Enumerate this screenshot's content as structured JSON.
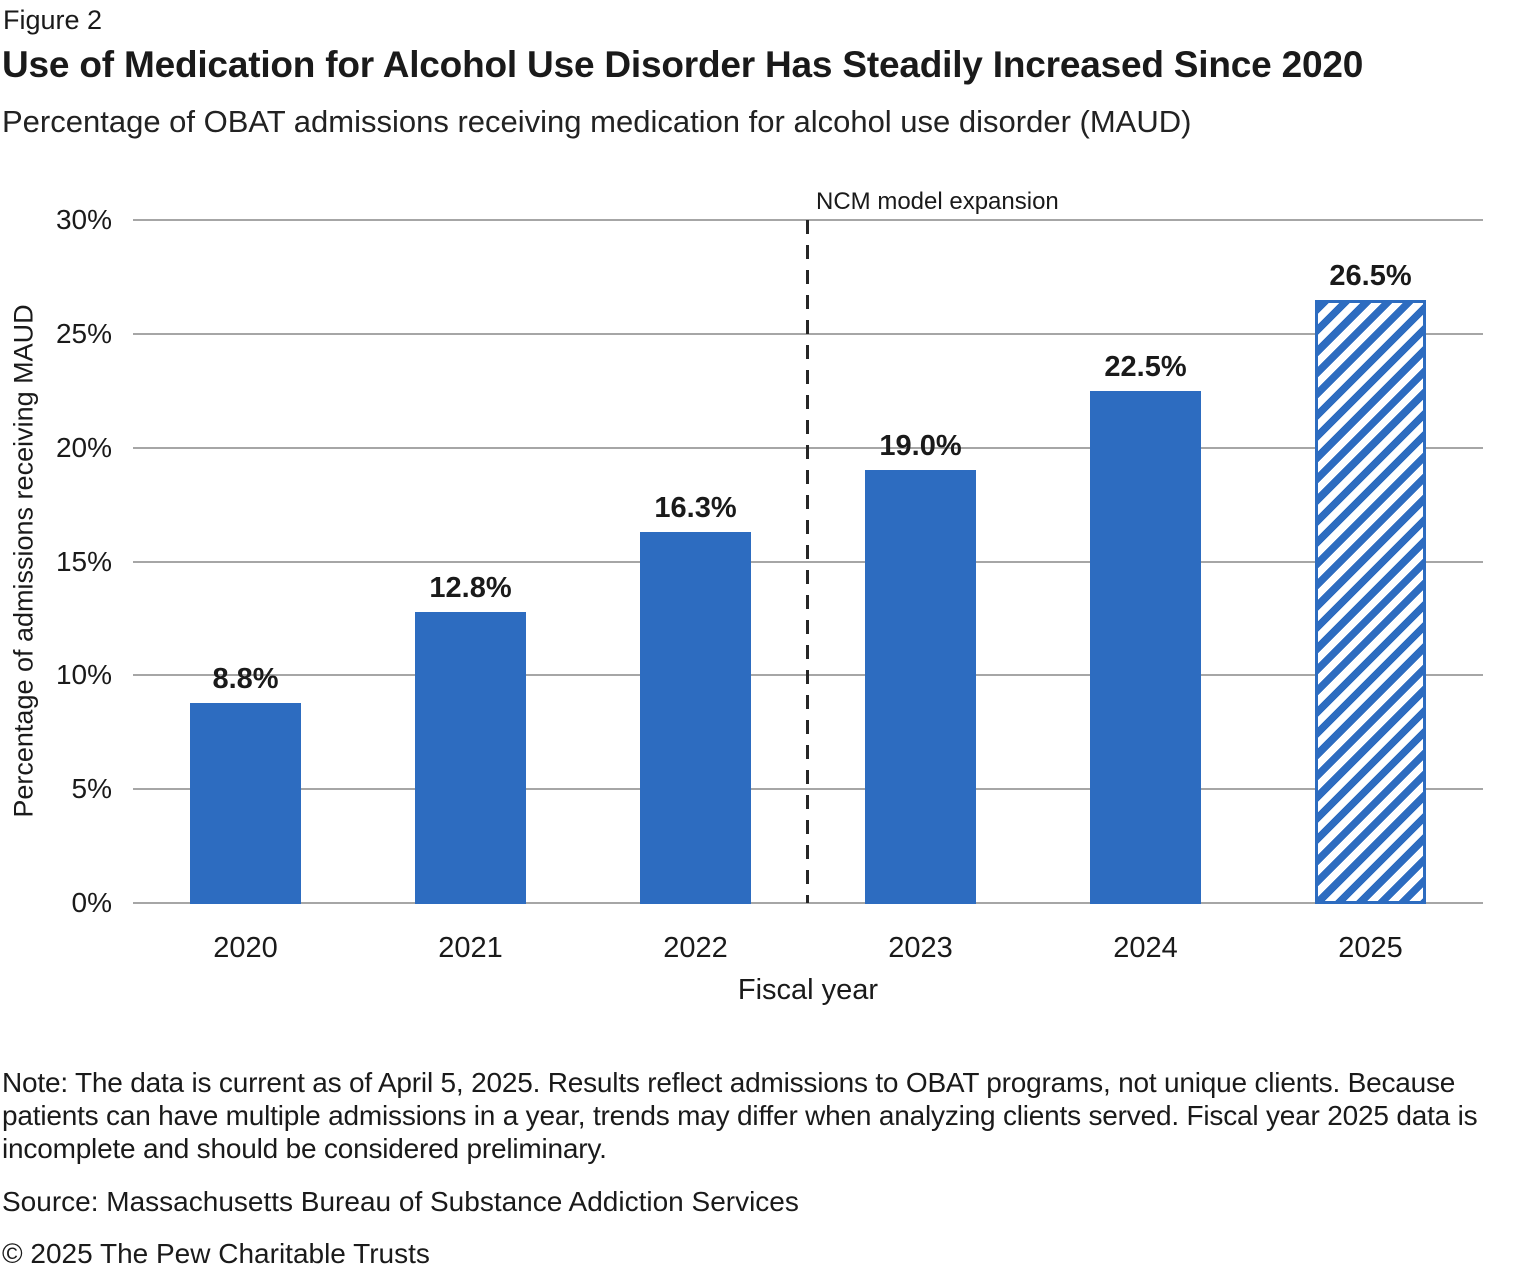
{
  "header": {
    "figure_label": "Figure 2"
  },
  "chart_data": {
    "type": "bar",
    "title": "Use of Medication for Alcohol Use Disorder Has Steadily Increased Since 2020",
    "subtitle": "Percentage of OBAT admissions receiving medication for alcohol use disorder (MAUD)",
    "categories": [
      "2020",
      "2021",
      "2022",
      "2023",
      "2024",
      "2025"
    ],
    "values": [
      8.8,
      12.8,
      16.3,
      19.0,
      22.5,
      26.5
    ],
    "value_labels": [
      "8.8%",
      "12.8%",
      "16.3%",
      "19.0%",
      "22.5%",
      "26.5%"
    ],
    "xlabel": "Fiscal year",
    "ylabel": "Percentage of admissions receiving MAUD",
    "ylim": [
      0,
      30
    ],
    "ytick_step": 5,
    "ytick_labels": [
      "0%",
      "5%",
      "10%",
      "15%",
      "20%",
      "25%",
      "30%"
    ],
    "grid": "horizontal",
    "legend": "none",
    "hatched_indices": [
      5
    ],
    "annotation": {
      "label": "NCM model expansion",
      "at_boundary_index": 3
    }
  },
  "colors": {
    "bar_blue": "#2d6cc0",
    "gridline_gray": "#a6a6a6",
    "dashed_line": "#262626",
    "text": "#1a1a1a"
  },
  "footer": {
    "note": "Note: The data is current as of April 5, 2025. Results reflect admissions to OBAT programs, not unique clients. Because patients can have multiple admissions in a year, trends may differ when analyzing clients served. Fiscal year 2025 data is incomplete and should be considered preliminary.",
    "source": "Source: Massachusetts Bureau of Substance Addiction Services",
    "copyright": "© 2025 The Pew Charitable Trusts"
  }
}
